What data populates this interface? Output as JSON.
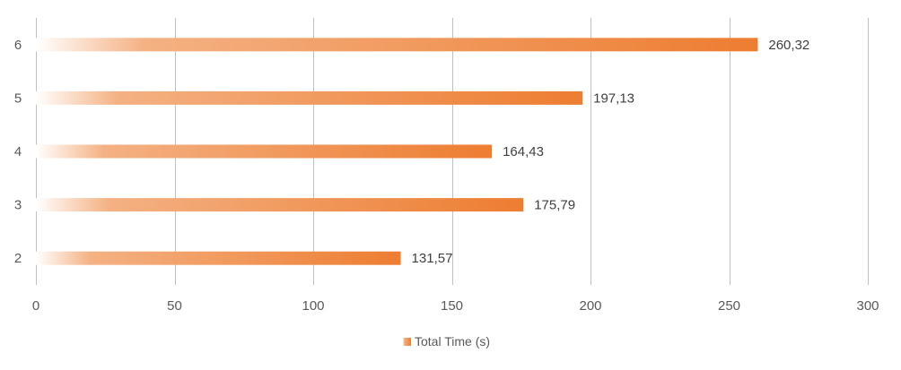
{
  "chart_data": {
    "type": "bar",
    "orientation": "horizontal",
    "categories": [
      "2",
      "3",
      "4",
      "5",
      "6"
    ],
    "series": [
      {
        "name": "Total Time (s)",
        "values": [
          131.57,
          175.79,
          164.43,
          197.13,
          260.32
        ],
        "data_labels": [
          "131,57",
          "175,79",
          "164,43",
          "197,13",
          "260,32"
        ]
      }
    ],
    "xlim": [
      0,
      300
    ],
    "x_ticks": [
      0,
      50,
      100,
      150,
      200,
      250,
      300
    ],
    "x_tick_labels": [
      "0",
      "50",
      "100",
      "150",
      "200",
      "250",
      "300"
    ],
    "grid": "vertical",
    "legend": "bottom",
    "colors": {
      "bar_start": "#ffffff",
      "bar_mid": "#f4b183",
      "bar_end": "#ed7d31",
      "grid": "#bfbfbf",
      "text": "#595959"
    }
  }
}
